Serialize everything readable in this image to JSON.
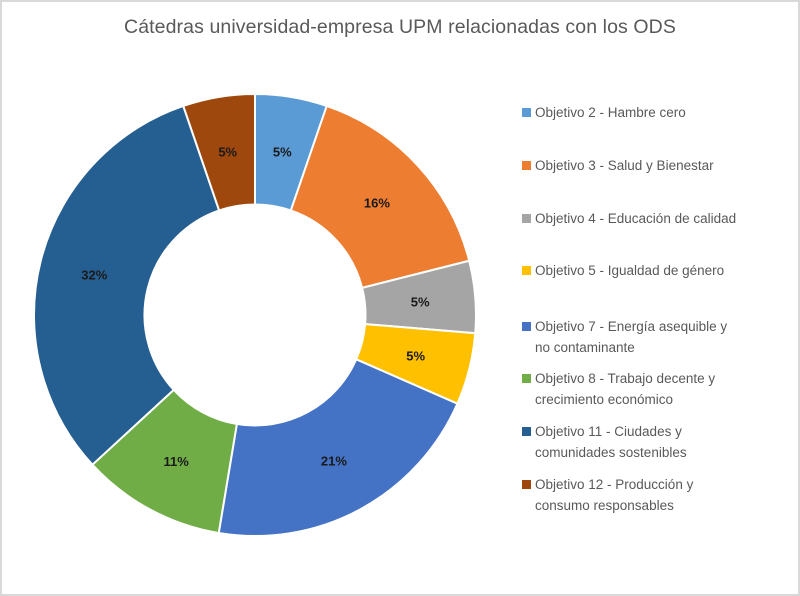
{
  "chart_data": {
    "type": "pie",
    "subtype": "donut",
    "title": "Cátedras universidad-empresa UPM relacionadas con los ODS",
    "start_angle_deg": 0,
    "direction": "clockwise",
    "inner_radius_ratio": 0.5,
    "legend_position": "right",
    "categories": [
      "Objetivo 2 - Hambre cero",
      "Objetivo 3 - Salud y Bienestar",
      "Objetivo 4 - Educación de calidad",
      "Objetivo 5 - Igualdad de género",
      "Objetivo 7 - Energía asequible y no contaminante",
      "Objetivo 8 - Trabajo decente y crecimiento económico",
      "Objetivo 11 - Ciudades y comunidades sostenibles",
      "Objetivo 12 - Producción y consumo responsables"
    ],
    "values": [
      5.26,
      15.79,
      5.26,
      5.26,
      21.05,
      10.53,
      31.58,
      5.26
    ],
    "data_labels": [
      "5%",
      "16%",
      "5%",
      "5%",
      "21%",
      "11%",
      "32%",
      "5%"
    ],
    "colors": [
      "#5B9BD5",
      "#ED7D31",
      "#A5A5A5",
      "#FFC000",
      "#4472C4",
      "#70AD47",
      "#255E91",
      "#9E480E"
    ]
  },
  "legend": {
    "items": [
      {
        "line1": "Objetivo 2 - Hambre cero",
        "line2": ""
      },
      {
        "line1": "Objetivo 3 - Salud y Bienestar",
        "line2": ""
      },
      {
        "line1": "Objetivo 4 - Educación de calidad",
        "line2": ""
      },
      {
        "line1": "Objetivo 5 - Igualdad de género",
        "line2": ""
      },
      {
        "line1": "Objetivo 7 - Energía asequible y",
        "line2": "no contaminante"
      },
      {
        "line1": "Objetivo 8 - Trabajo decente y",
        "line2": "crecimiento económico"
      },
      {
        "line1": "Objetivo 11 - Ciudades y",
        "line2": "comunidades sostenibles"
      },
      {
        "line1": "Objetivo 12 - Producción y",
        "line2": "consumo responsables"
      }
    ]
  }
}
